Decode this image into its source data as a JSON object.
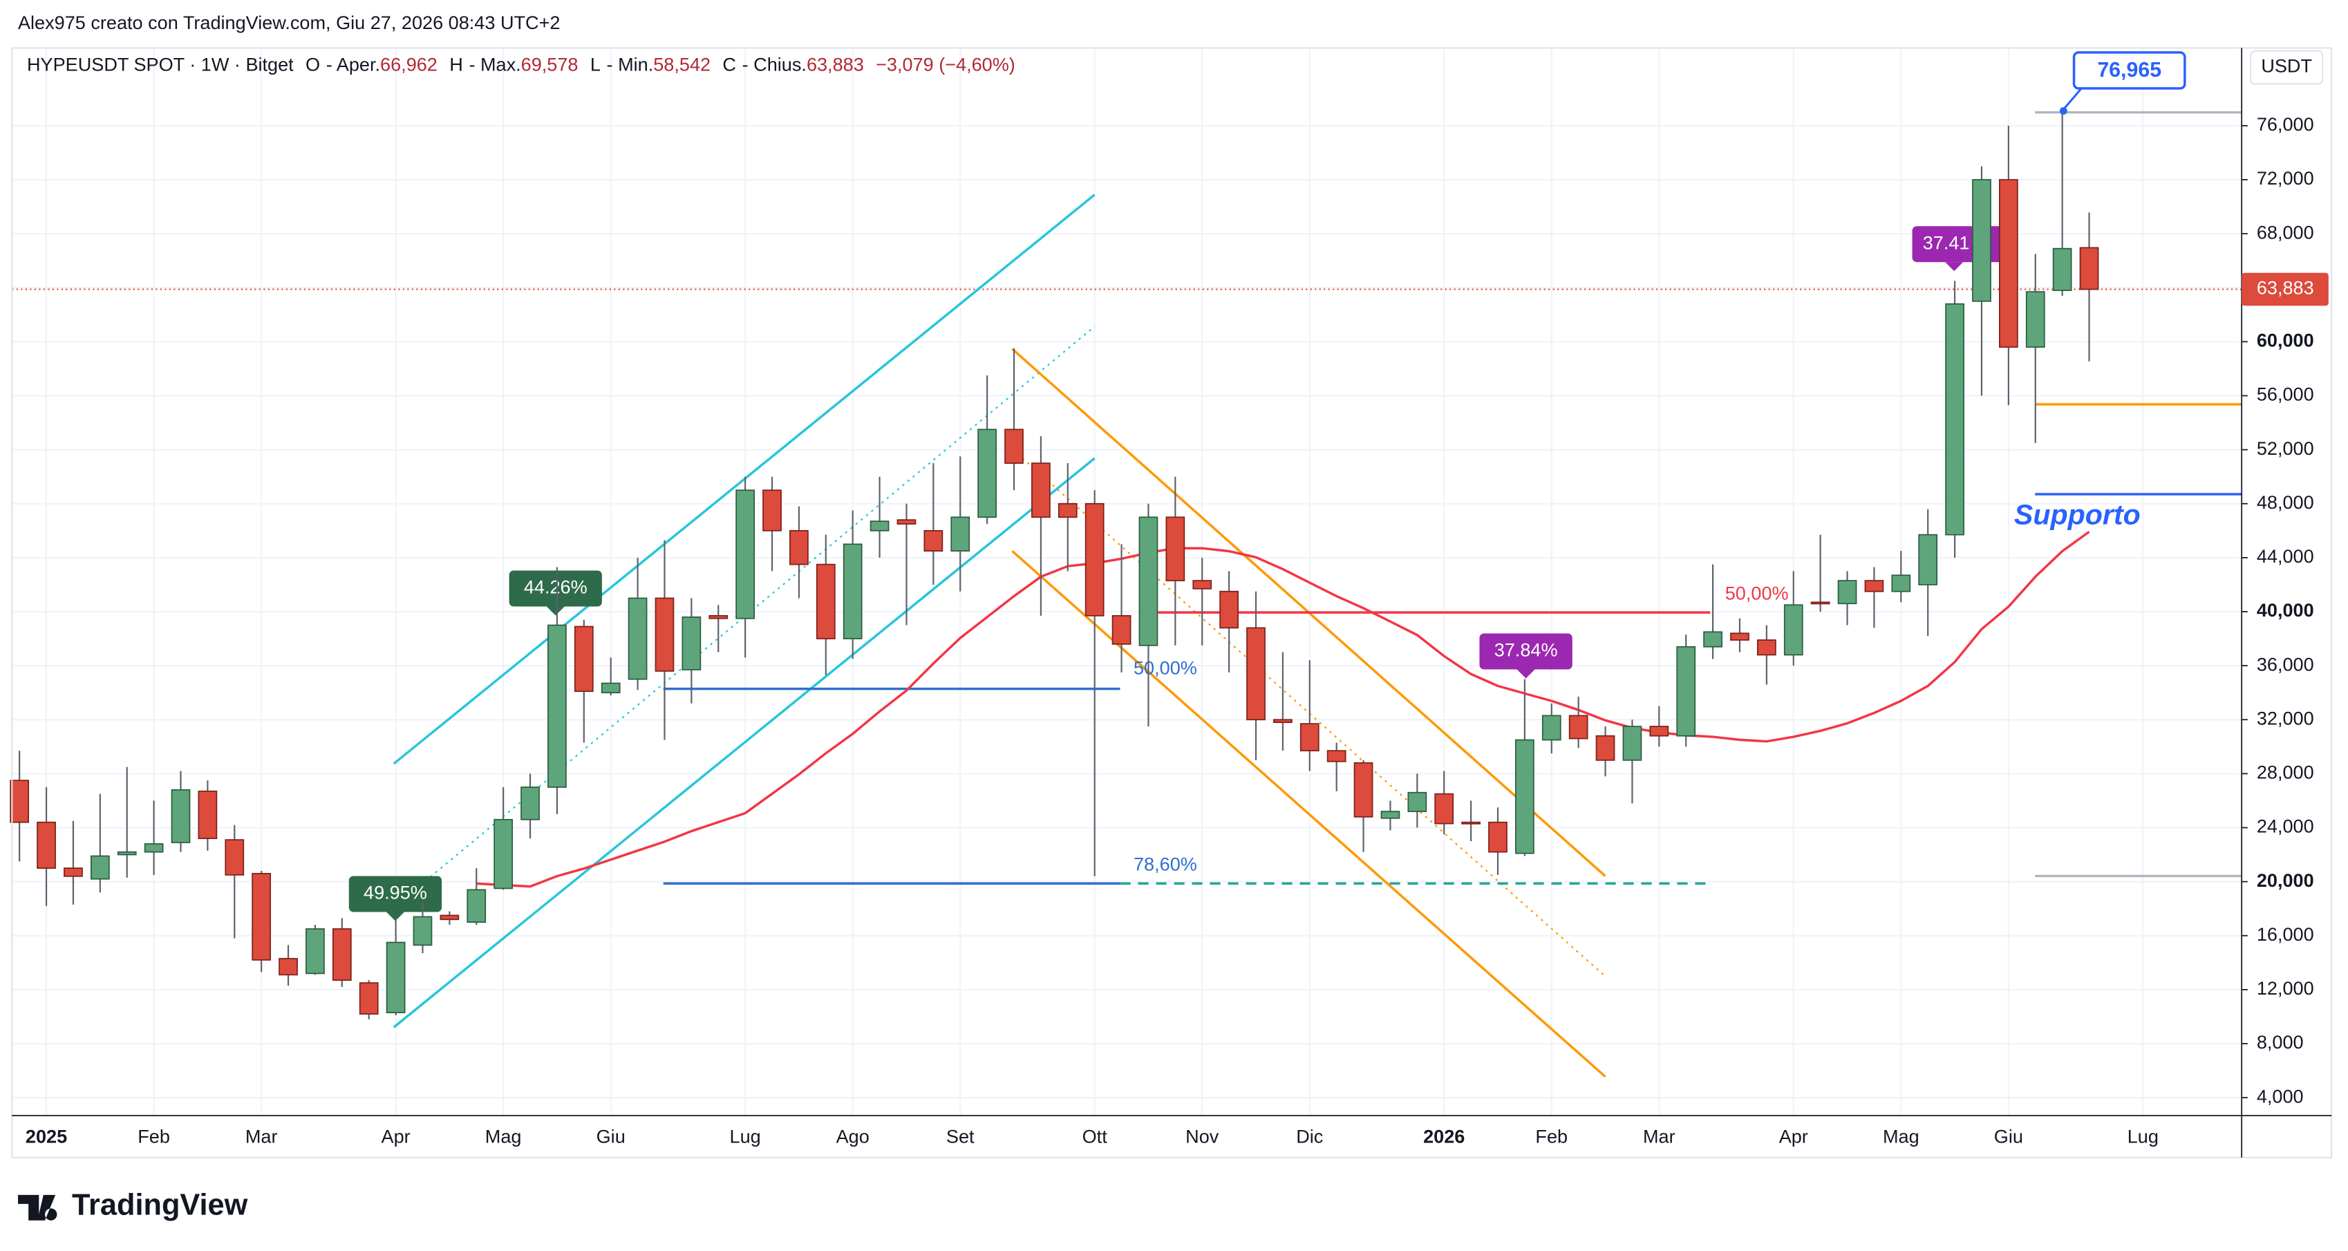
{
  "attribution": "Alex975 creato con TradingView.com, Giu 27, 2026 08:43 UTC+2",
  "footer": {
    "brand": "TradingView"
  },
  "chart_data": {
    "type": "candlestick",
    "title": "HYPEUSDT SPOT · 1W · Bitget",
    "ohlc_header": [
      {
        "key": "O",
        "name": "- Aper.",
        "value": "66,962"
      },
      {
        "key": "H",
        "name": "- Max.",
        "value": "69,578"
      },
      {
        "key": "L",
        "name": "- Min.",
        "value": "58,542"
      },
      {
        "key": "C",
        "name": "- Chius.",
        "value": "63,883"
      }
    ],
    "change": "−3,079 (−4,60%)",
    "y_axis_label": "USDT",
    "categories": [
      null,
      "2025",
      null,
      null,
      null,
      "Feb",
      null,
      null,
      null,
      "Mar",
      null,
      null,
      null,
      null,
      "Apr",
      null,
      null,
      null,
      "Mag",
      null,
      null,
      null,
      "Giu",
      null,
      null,
      null,
      null,
      "Lug",
      null,
      null,
      null,
      "Ago",
      null,
      null,
      null,
      "Set",
      null,
      null,
      null,
      null,
      "Ott",
      null,
      null,
      null,
      "Nov",
      null,
      null,
      null,
      "Dic",
      null,
      null,
      null,
      null,
      "2026",
      null,
      null,
      null,
      "Feb",
      null,
      null,
      null,
      "Mar",
      null,
      null,
      null,
      null,
      "Apr",
      null,
      null,
      null,
      "Mag",
      null,
      null,
      null,
      "Giu",
      null,
      null,
      null,
      null,
      "Lug"
    ],
    "open": [
      27500,
      24400,
      21000,
      20200,
      22000,
      22200,
      22900,
      26700,
      23100,
      20600,
      14300,
      13200,
      16500,
      12500,
      10300,
      15300,
      17500,
      17000,
      19500,
      24600,
      27000,
      38900,
      34000,
      35000,
      41000,
      35700,
      39700,
      39500,
      49000,
      46000,
      43500,
      38000,
      46000,
      46800,
      46000,
      44500,
      47000,
      53500,
      51000,
      48000,
      48000,
      39700,
      37500,
      47000,
      42300,
      41500,
      38800,
      32000,
      31700,
      29700,
      28800,
      24700,
      25200,
      26500,
      24400,
      24400,
      22100,
      30500,
      32300,
      30800,
      29000,
      31500,
      30800,
      37400,
      38400,
      37900,
      36800,
      40700,
      40600,
      42300,
      41500,
      42000,
      45700,
      63000,
      72000,
      59600,
      63800,
      66962,
      null,
      null
    ],
    "high": [
      29700,
      27000,
      24500,
      26500,
      28500,
      26000,
      28200,
      27500,
      24200,
      20800,
      15300,
      16800,
      17300,
      12700,
      17300,
      18500,
      17800,
      21000,
      27000,
      28000,
      43300,
      39400,
      36600,
      44000,
      45300,
      41000,
      40500,
      50000,
      50000,
      47800,
      45700,
      47500,
      50000,
      48000,
      51000,
      51500,
      57500,
      59500,
      53000,
      51000,
      49000,
      45000,
      48000,
      50000,
      44000,
      43000,
      41500,
      37000,
      36400,
      30300,
      29000,
      26000,
      28000,
      28200,
      26000,
      25500,
      35000,
      33200,
      33700,
      31500,
      32000,
      33000,
      38300,
      43500,
      39500,
      39000,
      43000,
      45700,
      43000,
      43300,
      44500,
      47600,
      64500,
      73000,
      76000,
      66500,
      76965,
      69578,
      null,
      null
    ],
    "low": [
      21500,
      18200,
      18300,
      19200,
      20300,
      20500,
      22200,
      22300,
      15800,
      13300,
      12300,
      13100,
      12200,
      9800,
      10100,
      14700,
      16800,
      16800,
      19400,
      23200,
      25000,
      30300,
      33800,
      34200,
      30500,
      33200,
      37000,
      36600,
      43000,
      41000,
      35300,
      36500,
      44000,
      39000,
      42000,
      41500,
      46500,
      49000,
      39700,
      43000,
      20400,
      35500,
      31500,
      37500,
      37500,
      35500,
      29000,
      29700,
      28200,
      26700,
      22200,
      23800,
      24000,
      23500,
      23000,
      20500,
      21900,
      29500,
      29900,
      27800,
      25800,
      30000,
      30000,
      36500,
      37000,
      34600,
      36000,
      40000,
      39000,
      38800,
      40700,
      38200,
      44000,
      56000,
      55300,
      52500,
      63400,
      58542,
      null,
      null
    ],
    "close": [
      24400,
      21000,
      20400,
      21900,
      22200,
      22800,
      26800,
      23200,
      20500,
      14200,
      13100,
      16500,
      12700,
      10200,
      15500,
      17400,
      17200,
      19400,
      24600,
      27000,
      39000,
      34100,
      34700,
      41000,
      35600,
      39600,
      39500,
      49000,
      46000,
      43500,
      38000,
      45000,
      46700,
      46500,
      44500,
      47000,
      53500,
      51000,
      47000,
      47000,
      39700,
      37600,
      47000,
      42300,
      41700,
      38800,
      32000,
      31800,
      29700,
      28900,
      24800,
      25200,
      26600,
      24300,
      24300,
      22200,
      30500,
      32300,
      30600,
      29000,
      31500,
      30800,
      37400,
      38500,
      37900,
      36800,
      40500,
      40600,
      42300,
      41500,
      42700,
      45700,
      62800,
      72000,
      59600,
      63700,
      66900,
      63883,
      null,
      null
    ],
    "up_color": "#5fa57b",
    "down_color": "#dc4b3c",
    "moving_average": {
      "color": "#f23645",
      "values": [
        null,
        null,
        null,
        null,
        null,
        null,
        null,
        null,
        null,
        null,
        null,
        null,
        null,
        null,
        null,
        null,
        null,
        19860,
        19750,
        19640,
        20410,
        20970,
        21630,
        22300,
        22960,
        23740,
        24410,
        25070,
        26510,
        27950,
        29510,
        30950,
        32610,
        34160,
        36160,
        38050,
        39600,
        41150,
        42590,
        43370,
        43590,
        43920,
        44370,
        44700,
        44700,
        44480,
        44030,
        43150,
        42150,
        41150,
        40260,
        39270,
        38270,
        36710,
        35380,
        34500,
        33940,
        33390,
        32720,
        31950,
        31390,
        31060,
        30840,
        30730,
        30510,
        30390,
        30730,
        31170,
        31730,
        32500,
        33390,
        34500,
        36270,
        38710,
        40370,
        42590,
        44480,
        45920,
        null,
        null
      ]
    },
    "ylim": [
      2670,
      81760
    ],
    "yticks": [
      {
        "value": 4000,
        "label": "4,000"
      },
      {
        "value": 8000,
        "label": "8,000"
      },
      {
        "value": 12000,
        "label": "12,000"
      },
      {
        "value": 16000,
        "label": "16,000"
      },
      {
        "value": 20000,
        "label": "20,000"
      },
      {
        "value": 24000,
        "label": "24,000"
      },
      {
        "value": 28000,
        "label": "28,000"
      },
      {
        "value": 32000,
        "label": "32,000"
      },
      {
        "value": 36000,
        "label": "36,000"
      },
      {
        "value": 40000,
        "label": "40,000"
      },
      {
        "value": 44000,
        "label": "44,000"
      },
      {
        "value": 48000,
        "label": "48,000"
      },
      {
        "value": 52000,
        "label": "52,000"
      },
      {
        "value": 56000,
        "label": "56,000"
      },
      {
        "value": 60000,
        "label": "60,000"
      },
      {
        "value": 64000,
        "label": "64,000"
      },
      {
        "value": 68000,
        "label": "68,000"
      },
      {
        "value": 72000,
        "label": "72,000"
      },
      {
        "value": 76000,
        "label": "76,000"
      }
    ],
    "grid": true,
    "last_price": {
      "value": 63883,
      "label": "63,883"
    },
    "high_marker": {
      "value": 76965,
      "label": "76,965"
    },
    "annotations": [
      "49.95%",
      "44.26%",
      "50,00%",
      "78,60%",
      "37.84%",
      "50,00%",
      "37.41",
      "Supporto"
    ]
  }
}
